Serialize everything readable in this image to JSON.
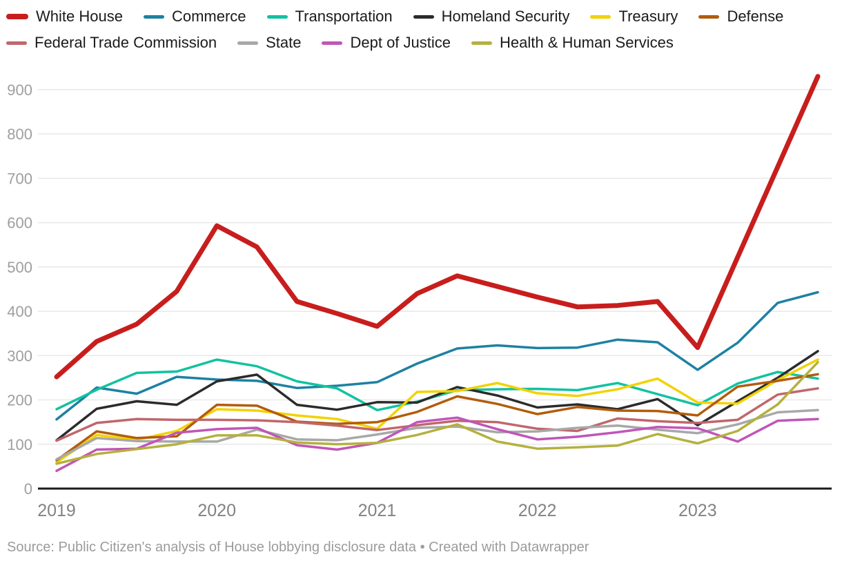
{
  "legend": {
    "items": [
      {
        "label": "White House",
        "color": "#c71e1d",
        "thick": true
      },
      {
        "label": "Commerce",
        "color": "#1d81a2",
        "thick": false
      },
      {
        "label": "Transportation",
        "color": "#12c2a0",
        "thick": false
      },
      {
        "label": "Homeland Security",
        "color": "#2b2b2b",
        "thick": false
      },
      {
        "label": "Treasury",
        "color": "#f2d200",
        "thick": false
      },
      {
        "label": "Defense",
        "color": "#b25c0c",
        "thick": false
      },
      {
        "label": "Federal Trade Commission",
        "color": "#c0666b",
        "thick": false
      },
      {
        "label": "State",
        "color": "#a8a8a8",
        "thick": false
      },
      {
        "label": "Dept of Justice",
        "color": "#c155b8",
        "thick": false
      },
      {
        "label": "Health & Human Services",
        "color": "#b4b13f",
        "thick": false
      }
    ]
  },
  "chart_data": {
    "type": "line",
    "title": "",
    "xlabel": "",
    "ylabel": "",
    "x_unit": "quarter",
    "categories": [
      "2019 Q1",
      "2019 Q2",
      "2019 Q3",
      "2019 Q4",
      "2020 Q1",
      "2020 Q2",
      "2020 Q3",
      "2020 Q4",
      "2021 Q1",
      "2021 Q2",
      "2021 Q3",
      "2021 Q4",
      "2022 Q1",
      "2022 Q2",
      "2022 Q3",
      "2022 Q4",
      "2023 Q1",
      "2023 Q2",
      "2023 Q3",
      "2023 Q4"
    ],
    "x_tick_labels": [
      "2019",
      "2020",
      "2021",
      "2022",
      "2023"
    ],
    "x_tick_positions": [
      0,
      4,
      8,
      12,
      16
    ],
    "y_ticks": [
      0,
      100,
      200,
      300,
      400,
      500,
      600,
      700,
      800,
      900
    ],
    "ylim": [
      0,
      950
    ],
    "grid": "horizontal",
    "legend_position": "top",
    "series": [
      {
        "name": "White House",
        "color": "#c71e1d",
        "line_width": 7,
        "values": [
          252,
          332,
          371,
          445,
          593,
          545,
          422,
          395,
          366,
          440,
          480,
          456,
          432,
          410,
          413,
          422,
          318,
          522,
          726,
          930
        ]
      },
      {
        "name": "Commerce",
        "color": "#1d81a2",
        "line_width": 3.5,
        "values": [
          156,
          228,
          214,
          252,
          246,
          243,
          227,
          232,
          240,
          282,
          316,
          323,
          317,
          318,
          336,
          330,
          268,
          329,
          419,
          443
        ]
      },
      {
        "name": "Transportation",
        "color": "#12c2a0",
        "line_width": 3.5,
        "values": [
          179,
          223,
          261,
          264,
          291,
          276,
          242,
          226,
          177,
          196,
          222,
          224,
          225,
          222,
          238,
          213,
          188,
          237,
          263,
          248
        ]
      },
      {
        "name": "Homeland Security",
        "color": "#2b2b2b",
        "line_width": 3.5,
        "values": [
          109,
          180,
          197,
          189,
          242,
          257,
          189,
          178,
          195,
          194,
          229,
          210,
          183,
          190,
          179,
          202,
          143,
          197,
          250,
          310
        ]
      },
      {
        "name": "Treasury",
        "color": "#f2d200",
        "line_width": 3.5,
        "values": [
          59,
          121,
          110,
          130,
          179,
          176,
          165,
          157,
          135,
          218,
          220,
          238,
          215,
          209,
          224,
          248,
          194,
          192,
          245,
          291
        ]
      },
      {
        "name": "Defense",
        "color": "#b25c0c",
        "line_width": 3.5,
        "values": [
          64,
          129,
          114,
          118,
          189,
          187,
          151,
          146,
          150,
          173,
          208,
          191,
          168,
          184,
          176,
          175,
          165,
          230,
          243,
          258
        ]
      },
      {
        "name": "Federal Trade Commission",
        "color": "#c0666b",
        "line_width": 3.5,
        "values": [
          108,
          148,
          157,
          155,
          155,
          154,
          150,
          142,
          132,
          143,
          153,
          150,
          135,
          130,
          158,
          152,
          148,
          155,
          212,
          226
        ]
      },
      {
        "name": "State",
        "color": "#a8a8a8",
        "line_width": 3.5,
        "values": [
          66,
          114,
          107,
          106,
          106,
          133,
          111,
          109,
          122,
          137,
          140,
          127,
          129,
          137,
          142,
          133,
          125,
          145,
          172,
          177
        ]
      },
      {
        "name": "Dept of Justice",
        "color": "#c155b8",
        "line_width": 3.5,
        "values": [
          40,
          88,
          90,
          126,
          134,
          137,
          98,
          88,
          103,
          150,
          160,
          134,
          111,
          117,
          127,
          139,
          136,
          106,
          153,
          157
        ]
      },
      {
        "name": "Health & Human Services",
        "color": "#b4b13f",
        "line_width": 3.5,
        "values": [
          56,
          78,
          89,
          100,
          120,
          120,
          104,
          100,
          103,
          121,
          145,
          106,
          90,
          93,
          97,
          123,
          102,
          130,
          190,
          285
        ]
      }
    ],
    "draw_order": [
      1,
      2,
      3,
      4,
      5,
      6,
      7,
      8,
      9,
      0
    ],
    "colors": {
      "gridline": "#e8e8e8",
      "baseline": "#1a1a1a",
      "y_tick_label": "#9e9e9e",
      "x_tick_label": "#828282",
      "background": "#ffffff"
    }
  },
  "footer": {
    "source_text": "Source: Public Citizen's analysis of House lobbying disclosure data • Created with Datawrapper"
  }
}
